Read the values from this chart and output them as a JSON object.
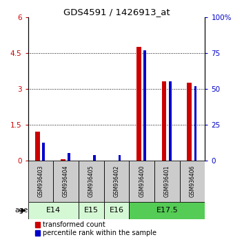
{
  "title": "GDS4591 / 1426913_at",
  "samples": [
    "GSM936403",
    "GSM936404",
    "GSM936405",
    "GSM936402",
    "GSM936400",
    "GSM936401",
    "GSM936406"
  ],
  "transformed_count": [
    1.2,
    0.05,
    0.0,
    0.0,
    4.75,
    3.3,
    3.25
  ],
  "percentile_rank": [
    12.5,
    5.0,
    3.5,
    3.5,
    77.0,
    55.0,
    52.0
  ],
  "age_groups": [
    {
      "label": "E14",
      "start": 0,
      "end": 2,
      "color": "#d4f7d4"
    },
    {
      "label": "E15",
      "start": 2,
      "end": 3,
      "color": "#d4f7d4"
    },
    {
      "label": "E16",
      "start": 3,
      "end": 4,
      "color": "#d4f7d4"
    },
    {
      "label": "E17.5",
      "start": 4,
      "end": 7,
      "color": "#55cc55"
    }
  ],
  "red_bar_width": 0.18,
  "blue_bar_width": 0.1,
  "red_color": "#cc0000",
  "blue_color": "#0000cc",
  "ylim_left": [
    0,
    6
  ],
  "ylim_right": [
    0,
    100
  ],
  "yticks_left": [
    0,
    1.5,
    3,
    4.5,
    6
  ],
  "yticks_right": [
    0,
    25,
    50,
    75,
    100
  ],
  "sample_box_color": "#cccccc",
  "legend_red": "transformed count",
  "legend_blue": "percentile rank within the sample"
}
